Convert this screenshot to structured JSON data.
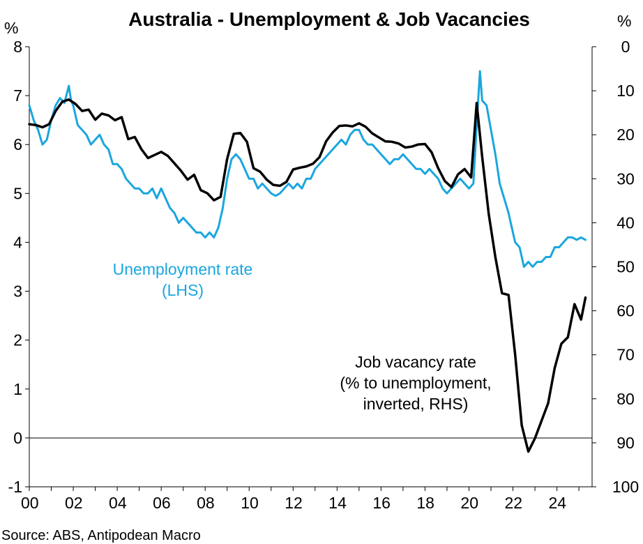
{
  "chart_data": {
    "type": "line",
    "title": "Australia - Unemployment & Job Vacancies",
    "y_left_unit": "%",
    "y_right_unit": "%",
    "y_left_lim": [
      -1,
      8
    ],
    "y_left_ticks": [
      "-1",
      "0",
      "1",
      "2",
      "3",
      "4",
      "5",
      "6",
      "7",
      "8"
    ],
    "y_right_lim": [
      100,
      0
    ],
    "y_right_inverted": true,
    "y_right_ticks": [
      "100",
      "90",
      "80",
      "70",
      "60",
      "50",
      "40",
      "30",
      "20",
      "10",
      "0"
    ],
    "x_lim": [
      2000,
      2025.6
    ],
    "x_ticks": [
      "00",
      "02",
      "04",
      "06",
      "08",
      "10",
      "12",
      "14",
      "16",
      "18",
      "20",
      "22",
      "24"
    ],
    "grid": false,
    "zero_line": true,
    "source": "Source: ABS, Antipodean Macro",
    "annotations": [
      {
        "lines": [
          "Unemployment rate",
          "(LHS)"
        ],
        "color": "#1aa6de"
      },
      {
        "lines": [
          "Job vacancy rate",
          "(% to unemployment,",
          "inverted, RHS)"
        ],
        "color": "#000000"
      }
    ],
    "series": [
      {
        "axis": "left",
        "color": "#1aa6de",
        "x": [
          2000.0,
          2000.2,
          2000.4,
          2000.6,
          2000.8,
          2001.0,
          2001.2,
          2001.4,
          2001.6,
          2001.8,
          2001.9,
          2002.0,
          2002.2,
          2002.4,
          2002.6,
          2002.8,
          2003.0,
          2003.2,
          2003.4,
          2003.6,
          2003.8,
          2004.0,
          2004.2,
          2004.4,
          2004.6,
          2004.8,
          2005.0,
          2005.2,
          2005.4,
          2005.6,
          2005.8,
          2006.0,
          2006.2,
          2006.4,
          2006.6,
          2006.8,
          2007.0,
          2007.2,
          2007.4,
          2007.6,
          2007.8,
          2008.0,
          2008.2,
          2008.4,
          2008.6,
          2008.8,
          2009.0,
          2009.2,
          2009.4,
          2009.6,
          2009.8,
          2010.0,
          2010.2,
          2010.4,
          2010.6,
          2010.8,
          2011.0,
          2011.2,
          2011.4,
          2011.6,
          2011.8,
          2012.0,
          2012.2,
          2012.4,
          2012.6,
          2012.8,
          2013.0,
          2013.2,
          2013.4,
          2013.6,
          2013.8,
          2014.0,
          2014.2,
          2014.4,
          2014.6,
          2014.8,
          2015.0,
          2015.2,
          2015.4,
          2015.6,
          2015.8,
          2016.0,
          2016.2,
          2016.4,
          2016.6,
          2016.8,
          2017.0,
          2017.2,
          2017.4,
          2017.6,
          2017.8,
          2018.0,
          2018.2,
          2018.4,
          2018.6,
          2018.8,
          2019.0,
          2019.2,
          2019.4,
          2019.6,
          2019.8,
          2020.0,
          2020.2,
          2020.35,
          2020.5,
          2020.6,
          2020.8,
          2021.0,
          2021.2,
          2021.4,
          2021.6,
          2021.8,
          2021.95,
          2022.1,
          2022.3,
          2022.5,
          2022.7,
          2022.9,
          2023.1,
          2023.3,
          2023.5,
          2023.7,
          2023.9,
          2024.1,
          2024.3,
          2024.5,
          2024.7,
          2024.9,
          2025.1,
          2025.3
        ],
        "values": [
          6.8,
          6.5,
          6.3,
          6.0,
          6.1,
          6.5,
          6.8,
          6.95,
          6.85,
          7.2,
          6.9,
          6.8,
          6.4,
          6.3,
          6.2,
          6.0,
          6.1,
          6.2,
          6.0,
          5.9,
          5.6,
          5.6,
          5.5,
          5.3,
          5.2,
          5.1,
          5.1,
          5.0,
          5.0,
          5.1,
          4.9,
          5.1,
          4.9,
          4.7,
          4.6,
          4.4,
          4.5,
          4.4,
          4.3,
          4.2,
          4.2,
          4.1,
          4.2,
          4.1,
          4.3,
          4.7,
          5.3,
          5.7,
          5.8,
          5.7,
          5.5,
          5.3,
          5.3,
          5.1,
          5.2,
          5.1,
          5.0,
          4.95,
          5.0,
          5.1,
          5.2,
          5.1,
          5.2,
          5.1,
          5.3,
          5.3,
          5.5,
          5.6,
          5.7,
          5.8,
          5.9,
          6.0,
          6.1,
          6.0,
          6.2,
          6.3,
          6.3,
          6.1,
          6.0,
          6.0,
          5.9,
          5.8,
          5.7,
          5.6,
          5.7,
          5.7,
          5.8,
          5.7,
          5.6,
          5.5,
          5.5,
          5.4,
          5.5,
          5.4,
          5.3,
          5.1,
          5.0,
          5.1,
          5.2,
          5.3,
          5.2,
          5.1,
          5.2,
          6.4,
          7.5,
          6.9,
          6.8,
          6.3,
          5.8,
          5.2,
          4.9,
          4.6,
          4.3,
          4.0,
          3.9,
          3.5,
          3.6,
          3.5,
          3.6,
          3.6,
          3.7,
          3.7,
          3.9,
          3.9,
          4.0,
          4.1,
          4.1,
          4.05,
          4.1,
          4.05
        ]
      },
      {
        "axis": "right",
        "color": "#000000",
        "x": [
          2000.0,
          2000.3,
          2000.6,
          2000.9,
          2001.2,
          2001.5,
          2001.8,
          2002.1,
          2002.4,
          2002.7,
          2003.0,
          2003.3,
          2003.6,
          2003.9,
          2004.2,
          2004.5,
          2004.8,
          2005.1,
          2005.4,
          2005.7,
          2006.0,
          2006.3,
          2006.6,
          2006.9,
          2007.2,
          2007.5,
          2007.8,
          2008.1,
          2008.4,
          2008.7,
          2009.0,
          2009.3,
          2009.6,
          2009.9,
          2010.2,
          2010.5,
          2010.8,
          2011.1,
          2011.4,
          2011.7,
          2012.0,
          2012.3,
          2012.6,
          2012.9,
          2013.2,
          2013.5,
          2013.8,
          2014.1,
          2014.4,
          2014.7,
          2015.0,
          2015.3,
          2015.6,
          2015.9,
          2016.2,
          2016.5,
          2016.8,
          2017.1,
          2017.4,
          2017.7,
          2018.0,
          2018.3,
          2018.6,
          2018.9,
          2019.2,
          2019.5,
          2019.8,
          2020.1,
          2020.35,
          2020.6,
          2020.9,
          2021.2,
          2021.5,
          2021.8,
          2022.1,
          2022.4,
          2022.7,
          2023.0,
          2023.3,
          2023.6,
          2023.9,
          2024.2,
          2024.5,
          2024.8,
          2025.1,
          2025.3
        ],
        "values": [
          17.6,
          17.8,
          18.3,
          17.6,
          14.6,
          12.5,
          12.0,
          13.0,
          14.6,
          14.3,
          16.6,
          15.2,
          15.6,
          16.7,
          16.0,
          21.0,
          20.5,
          23.3,
          25.3,
          24.6,
          23.9,
          24.8,
          26.5,
          28.2,
          30.2,
          29.1,
          32.6,
          33.3,
          34.9,
          34.1,
          25.5,
          19.8,
          19.6,
          21.6,
          27.6,
          28.4,
          30.2,
          31.4,
          31.6,
          30.7,
          27.9,
          27.5,
          27.2,
          26.6,
          25.1,
          21.5,
          19.5,
          18.0,
          17.9,
          18.1,
          17.4,
          18.2,
          19.7,
          20.6,
          21.5,
          21.6,
          22.0,
          22.9,
          22.7,
          22.2,
          22.1,
          24.0,
          27.6,
          30.5,
          31.9,
          29.0,
          27.8,
          29.7,
          12.8,
          25.0,
          38.0,
          47.8,
          56.0,
          56.4,
          70.0,
          86.0,
          92.0,
          89.0,
          85.0,
          81.0,
          73.0,
          67.5,
          66.0,
          58.5,
          62.0,
          57.0
        ]
      }
    ]
  }
}
